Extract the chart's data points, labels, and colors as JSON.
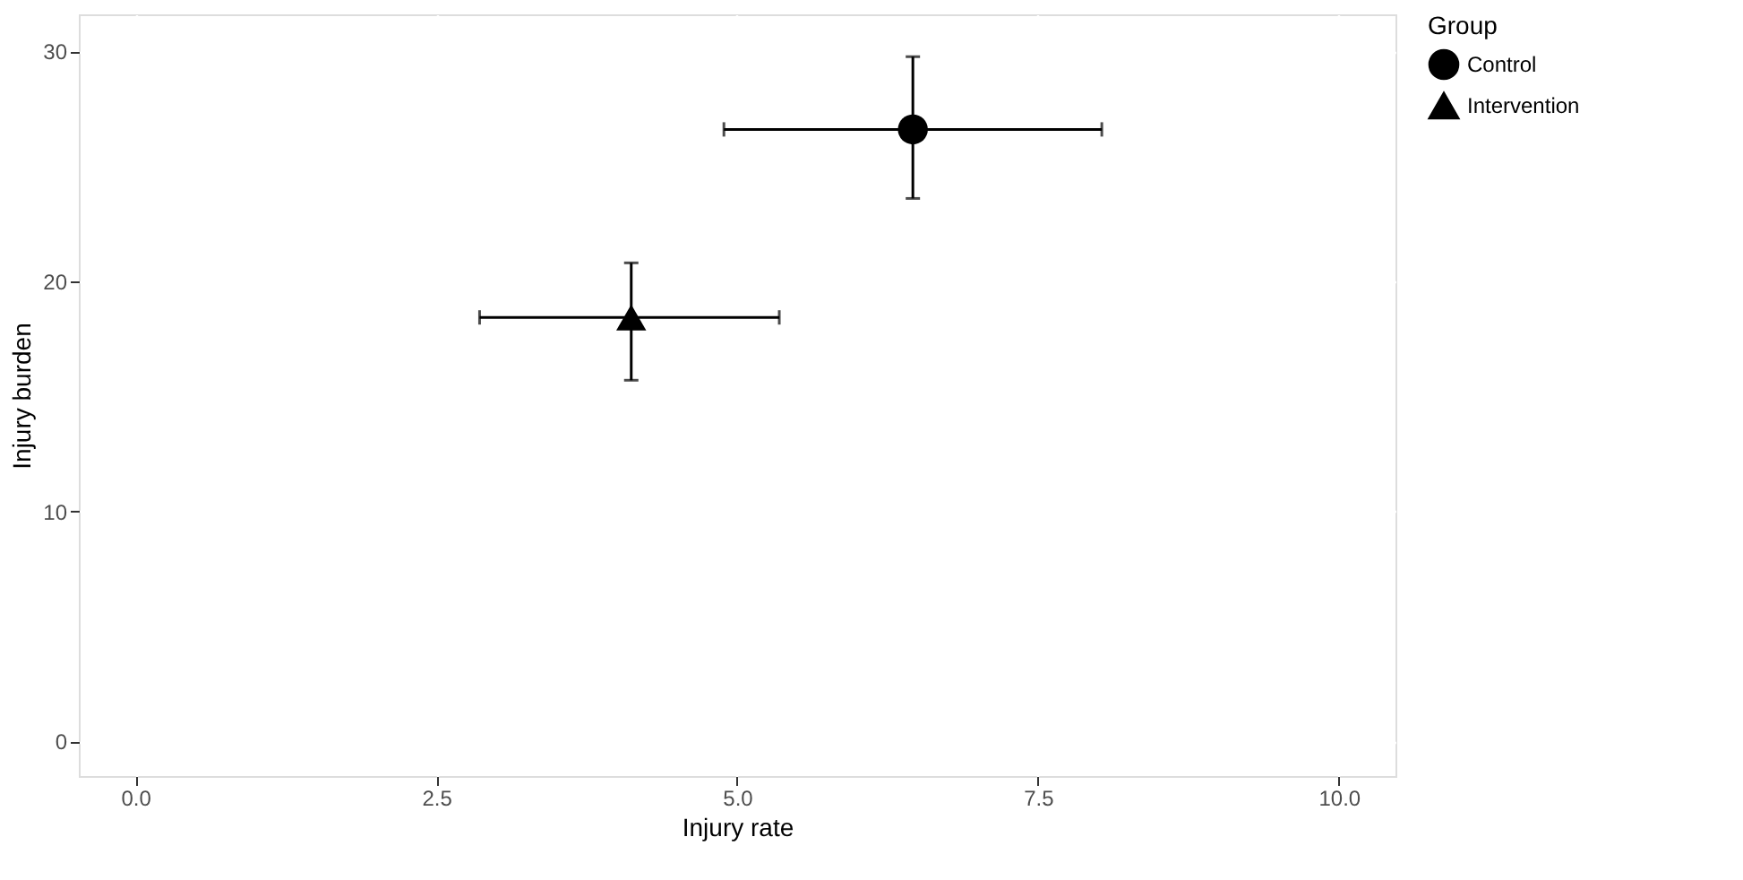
{
  "chart_data": {
    "type": "scatter",
    "xlabel": "Injury rate",
    "ylabel": "Injury burden",
    "legend_title": "Group",
    "legend": "right",
    "grid": true,
    "xlim": [
      -0.47,
      10.47
    ],
    "xticks": [
      {
        "value": 0,
        "label": "0.0"
      },
      2.5,
      {
        "value": 5,
        "label": "5.0"
      },
      {
        "value": 7.5,
        "label": "7.5"
      },
      {
        "value": 10,
        "label": "10.0"
      }
    ],
    "ylim": [
      -1.5,
      31.6
    ],
    "yticks": [
      0,
      10,
      20,
      30
    ],
    "series": [
      {
        "name": "Control",
        "color": "#000000",
        "marker": "circle",
        "x": [
          6.46
        ],
        "values": [
          26.6
        ],
        "errors": [
          [
            23.6,
            29.76
          ]
        ],
        "xerrors": [
          [
            4.89,
            8.03
          ]
        ]
      },
      {
        "name": "Intervention",
        "color": "#000000",
        "marker": "triangle",
        "x": [
          4.12
        ],
        "values": [
          18.43
        ],
        "errors": [
          [
            15.7,
            20.8
          ]
        ],
        "xerrors": [
          [
            2.86,
            5.35
          ]
        ]
      }
    ]
  }
}
